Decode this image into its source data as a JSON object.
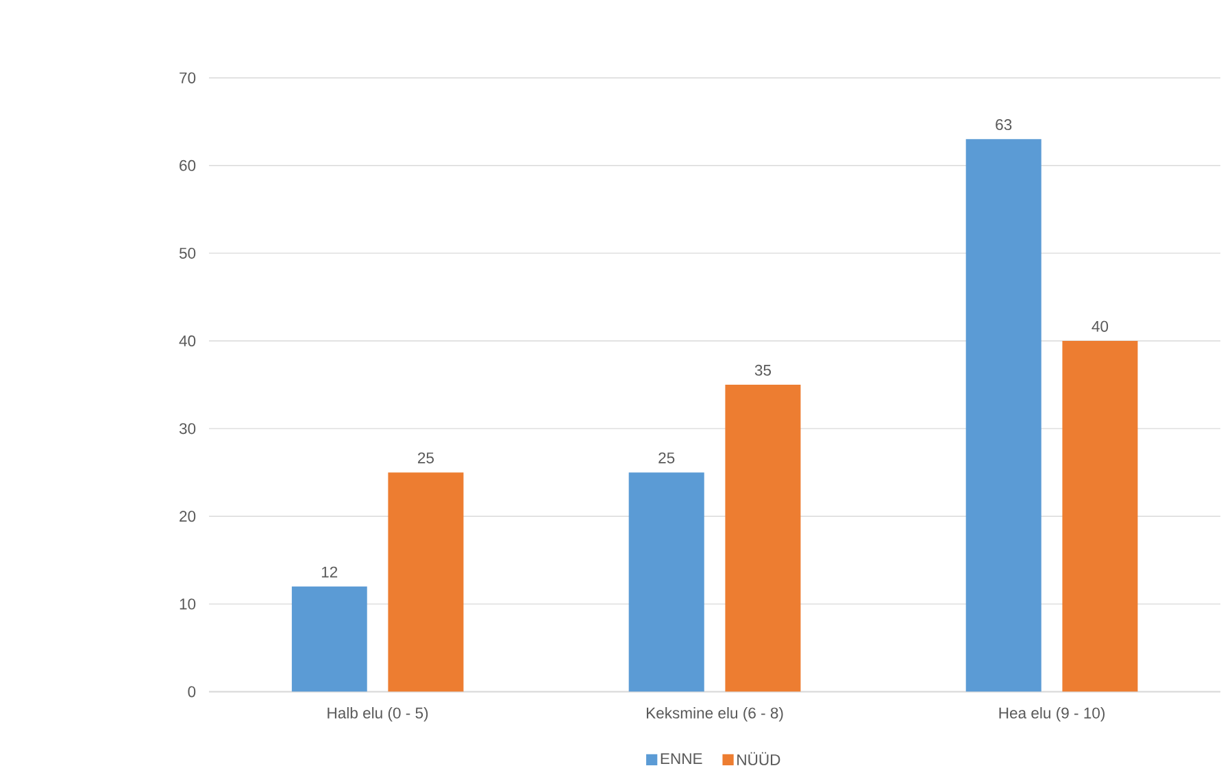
{
  "chart_data": {
    "type": "bar",
    "categories": [
      "Halb elu (0 - 5)",
      "Keksmine elu (6 - 8)",
      "Hea elu (9 - 10)"
    ],
    "series": [
      {
        "name": "ENNE",
        "color": "#5b9bd5",
        "values": [
          12,
          25,
          63
        ]
      },
      {
        "name": "NÜÜD",
        "color": "#ed7d31",
        "values": [
          25,
          35,
          40
        ]
      }
    ],
    "ylim": [
      0,
      70
    ],
    "yticks": [
      0,
      10,
      20,
      30,
      40,
      50,
      60,
      70
    ],
    "grid": "y",
    "legend": "bottom",
    "data_labels": true
  }
}
